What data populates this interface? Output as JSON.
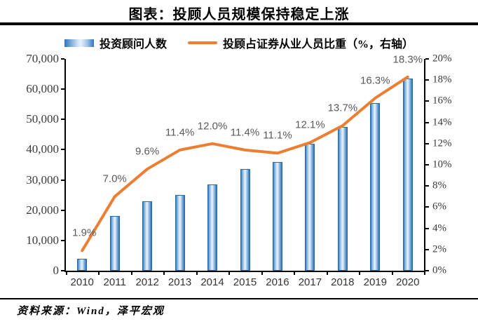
{
  "title": "图表：投顾人员规模保持稳定上涨",
  "legend": {
    "bar_label": "投资顾问人数",
    "line_label": "投顾占证券从业人员比重（%，右轴）"
  },
  "source": "资料来源：Wind，泽平宏观",
  "colors": {
    "bar_edge": "#2E75B6",
    "bar_highlight": "#EAF3FB",
    "line": "#ED7D31",
    "axis": "#000000",
    "point_label_text": "#595959"
  },
  "chart_data": {
    "type": "bar",
    "combo": "bar+line",
    "title": "图表：投顾人员规模保持稳定上涨",
    "categories": [
      "2010",
      "2011",
      "2012",
      "2013",
      "2014",
      "2015",
      "2016",
      "2017",
      "2018",
      "2019",
      "2020"
    ],
    "series": [
      {
        "name": "投资顾问人数",
        "type": "bar",
        "axis": "left",
        "values": [
          4000,
          18000,
          23000,
          25000,
          28500,
          33500,
          36000,
          42000,
          47500,
          55500,
          63500
        ]
      },
      {
        "name": "投顾占证券从业人员比重（%，右轴）",
        "type": "line",
        "axis": "right",
        "values": [
          1.9,
          7.0,
          9.6,
          11.4,
          12.0,
          11.4,
          11.1,
          12.1,
          13.7,
          16.3,
          18.3
        ],
        "point_labels": [
          "1.9%",
          "7.0%",
          "9.6%",
          "11.4%",
          "12.0%",
          "11.4%",
          "11.1%",
          "12.1%",
          "13.7%",
          "16.3%",
          "18.3%"
        ]
      }
    ],
    "left_axis": {
      "min": 0,
      "max": 70000,
      "step": 10000,
      "tick_labels": [
        "0",
        "10,000",
        "20,000",
        "30,000",
        "40,000",
        "50,000",
        "60,000",
        "70,000"
      ]
    },
    "right_axis": {
      "min": 0,
      "max": 20,
      "step": 2,
      "tick_labels": [
        "0%",
        "2%",
        "4%",
        "6%",
        "8%",
        "10%",
        "12%",
        "14%",
        "16%",
        "18%",
        "20%"
      ]
    },
    "legend_position": "top",
    "grid": false
  }
}
